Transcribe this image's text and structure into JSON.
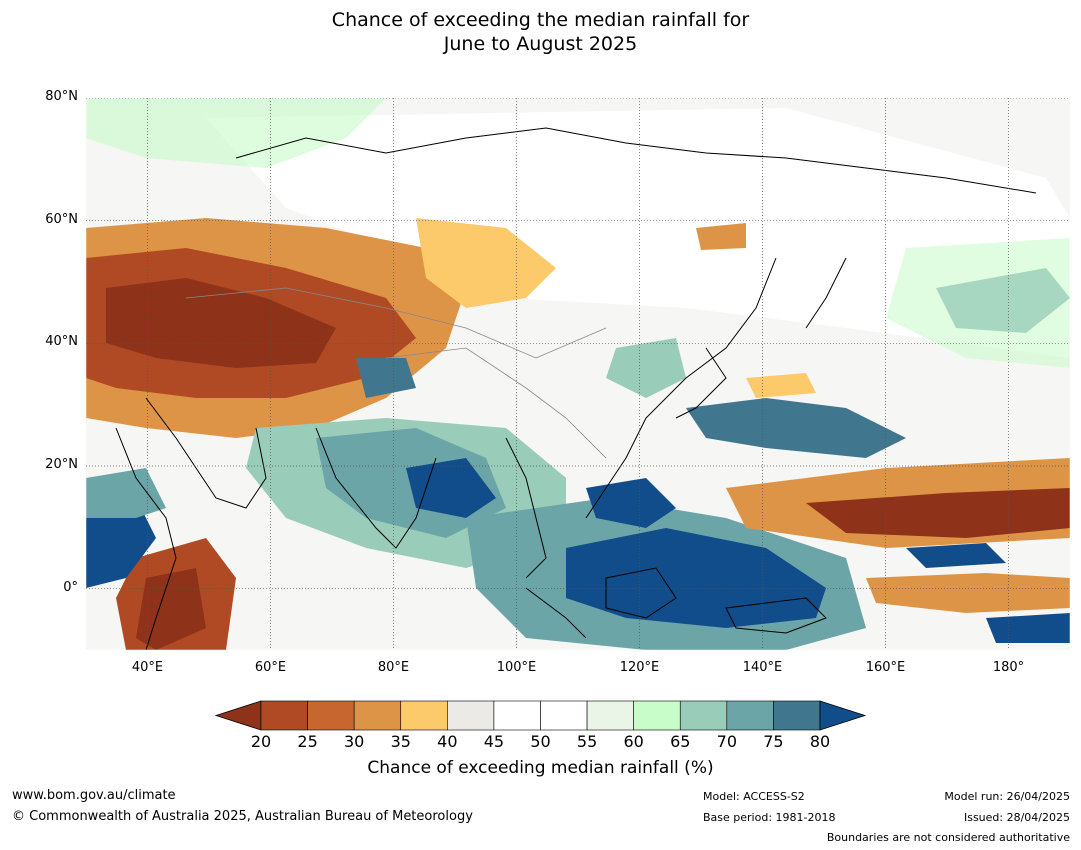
{
  "title": {
    "line1": "Chance of exceeding the median rainfall for",
    "line2": "June to August 2025"
  },
  "map": {
    "lat_labels": [
      "80°N",
      "60°N",
      "40°N",
      "20°N",
      "0°"
    ],
    "lon_labels": [
      "40°E",
      "60°E",
      "80°E",
      "100°E",
      "120°E",
      "140°E",
      "160°E",
      "180°"
    ],
    "lat_range": [
      -10,
      80
    ],
    "lon_range": [
      30,
      190
    ],
    "lat_ticks": [
      80,
      60,
      40,
      20,
      0
    ],
    "lon_ticks": [
      40,
      60,
      80,
      100,
      120,
      140,
      160,
      180
    ]
  },
  "colorbar": {
    "title": "Chance of exceeding median rainfall (%)",
    "ticks": [
      "20",
      "25",
      "30",
      "35",
      "40",
      "45",
      "50",
      "55",
      "60",
      "65",
      "70",
      "75",
      "80"
    ],
    "colors": [
      "#8e3219",
      "#b04a24",
      "#c8662f",
      "#de9446",
      "#fcc96b",
      "#eceae6",
      "#ffffff",
      "#ffffff",
      "#eaf5e8",
      "#c8fcc8",
      "#99cdb9",
      "#6ba5a7",
      "#40778e",
      "#114d8a"
    ]
  },
  "footer": {
    "website": "www.bom.gov.au/climate",
    "copyright": "© Commonwealth of Australia 2025, Australian Bureau of Meteorology",
    "model": "Model: ACCESS-S2",
    "base_period": "Base period: 1981-2018",
    "model_run": "Model run: 26/04/2025",
    "issued": "Issued: 28/04/2025",
    "boundaries_note": "Boundaries are not considered authoritative"
  }
}
